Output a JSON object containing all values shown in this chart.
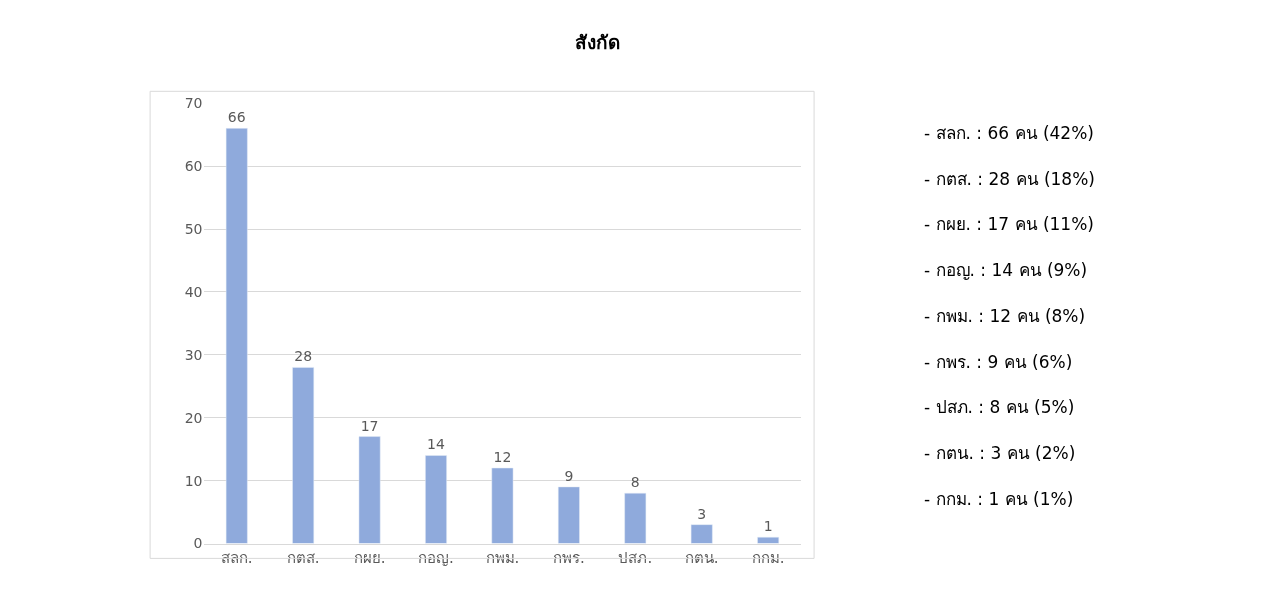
{
  "chart_data": {
    "type": "bar",
    "title": "สังกัด",
    "categories": [
      "สลก.",
      "กตส.",
      "กผย.",
      "กอญ.",
      "กพม.",
      "กพร.",
      "ปสภ.",
      "กตน.",
      "กกม."
    ],
    "values": [
      66,
      28,
      17,
      14,
      12,
      9,
      8,
      3,
      1
    ],
    "color": "#8faadc",
    "ylim": [
      0,
      70
    ],
    "yticks": [
      0,
      10,
      20,
      30,
      40,
      50,
      60,
      70
    ],
    "grid": "y",
    "data_labels": true,
    "annotations": [
      "- สลก. : 66 คน (42%)",
      "- กตส. : 28 คน (18%)",
      "- กผย. : 17 คน (11%)",
      "- กอญ. : 14 คน (9%)",
      "- กพม. : 12 คน (8%)",
      "- กพร. : 9 คน (6%)",
      "- ปสภ. : 8 คน (5%)",
      "- กตน. : 3 คน (2%)",
      "- กกม. : 1 คน (1%)"
    ]
  }
}
